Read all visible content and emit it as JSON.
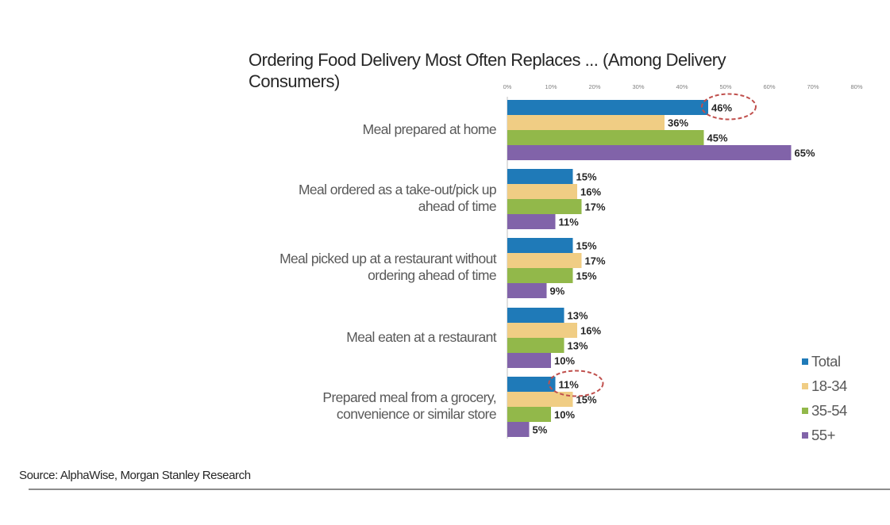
{
  "chart_data": {
    "type": "bar",
    "orientation": "horizontal",
    "title": "Ordering Food Delivery Most Often Replaces ... (Among Delivery Consumers)",
    "categories": [
      "Meal prepared at home",
      "Meal ordered as a take-out/pick up ahead of time",
      "Meal picked up at a restaurant without ordering ahead of time",
      "Meal eaten at a restaurant",
      "Prepared meal from a grocery, convenience or similar store"
    ],
    "series": [
      {
        "name": "Total",
        "color": "#1f7ab8",
        "values": [
          46,
          15,
          15,
          13,
          11
        ],
        "labels": [
          "46%",
          "15%",
          "15%",
          "13%",
          "11%"
        ]
      },
      {
        "name": "18-34",
        "color": "#f0cd84",
        "values": [
          36,
          16,
          17,
          16,
          15
        ],
        "labels": [
          "36%",
          "16%",
          "17%",
          "16%",
          "15%"
        ]
      },
      {
        "name": "35-54",
        "color": "#92b84a",
        "values": [
          45,
          17,
          15,
          13,
          10
        ],
        "labels": [
          "45%",
          "17%",
          "15%",
          "13%",
          "10%"
        ]
      },
      {
        "name": "55+",
        "color": "#8163a9",
        "values": [
          65,
          11,
          9,
          10,
          5
        ],
        "labels": [
          "65%",
          "11%",
          "9%",
          "10%",
          "5%"
        ]
      }
    ],
    "xlim": [
      0,
      80
    ],
    "xticks": [
      "0%",
      "10%",
      "20%",
      "30%",
      "40%",
      "50%",
      "60%",
      "70%",
      "80%"
    ],
    "grid": false,
    "legend_position": "bottom-right",
    "highlighted": [
      {
        "category_index": 0,
        "series_index": 0
      },
      {
        "category_index": 4,
        "series_index": 0
      }
    ]
  },
  "category_lines": [
    [
      "Meal prepared at home"
    ],
    [
      "Meal ordered as a take-out/pick up",
      "ahead of time"
    ],
    [
      "Meal picked up at a restaurant without",
      "ordering ahead of time"
    ],
    [
      "Meal eaten at a restaurant"
    ],
    [
      "Prepared meal from a grocery,",
      "convenience or similar store"
    ]
  ],
  "source": "Source: AlphaWise, Morgan Stanley Research",
  "highlight_color": "#c0504d"
}
